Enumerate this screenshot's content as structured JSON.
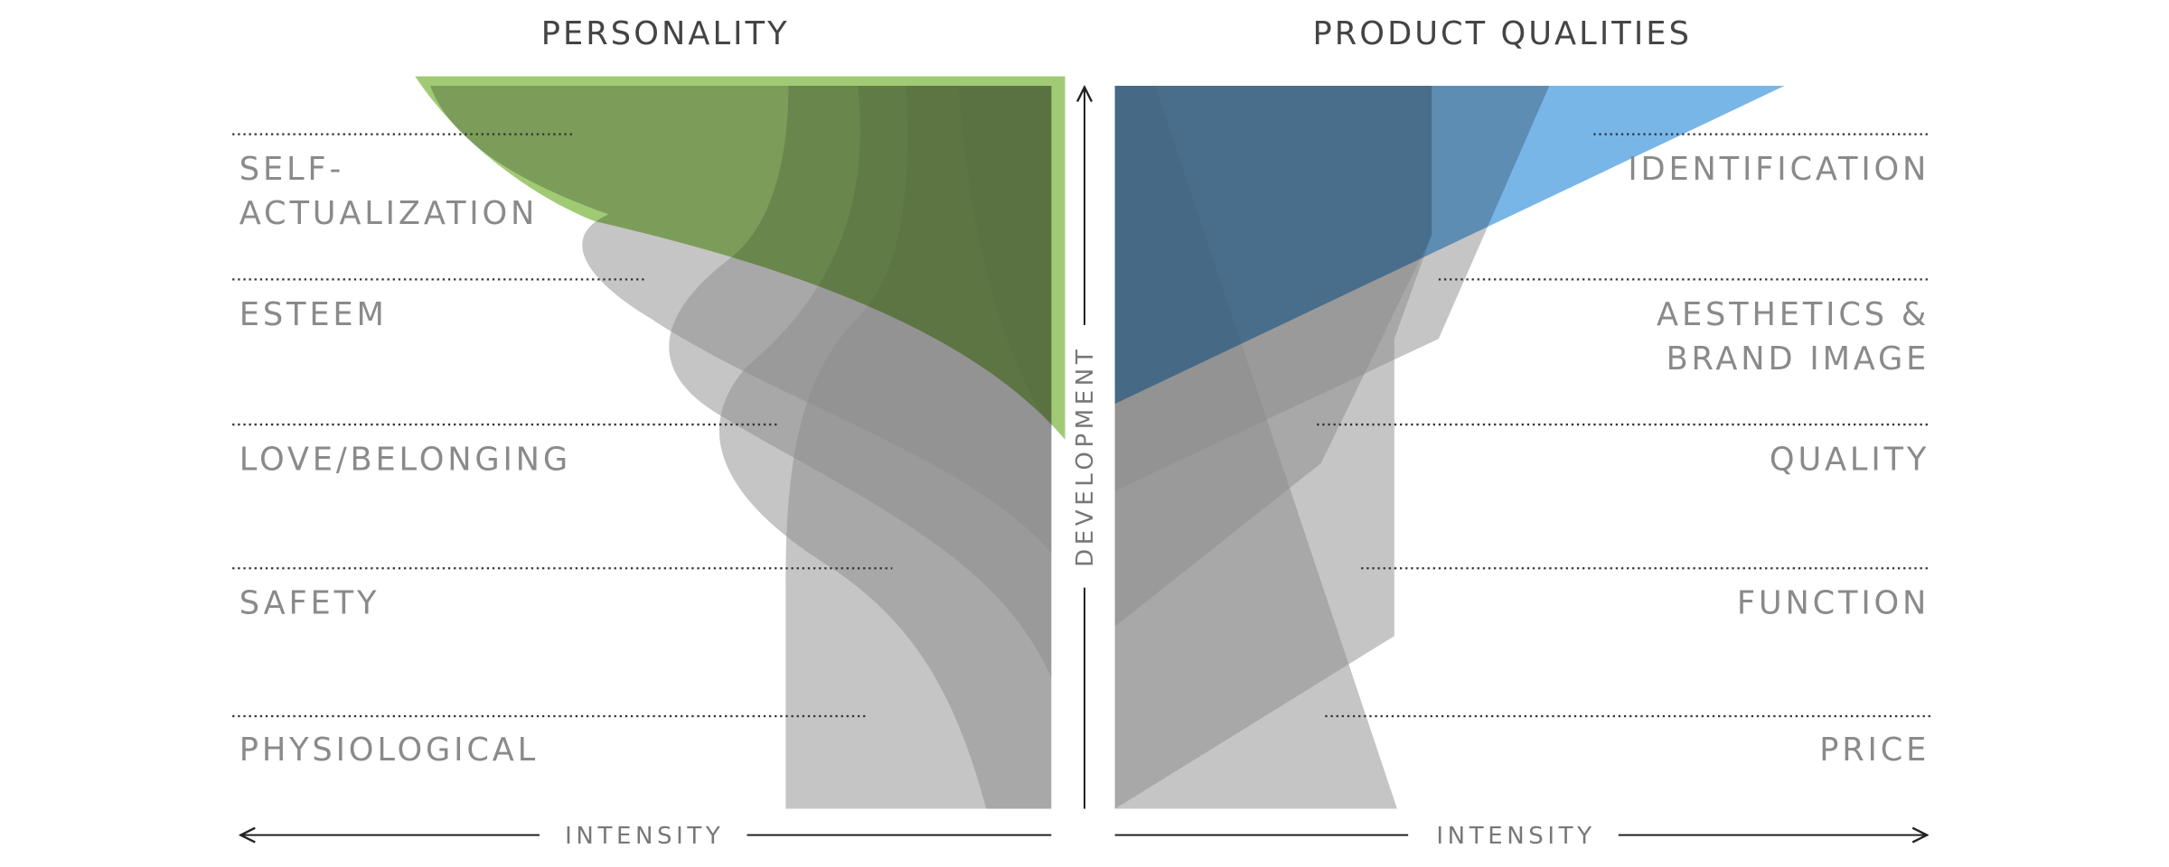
{
  "personality": {
    "title": "PERSONALITY",
    "levels": [
      [
        "SELF-",
        "ACTUALIZATION"
      ],
      [
        "ESTEEM"
      ],
      [
        "LOVE/BELONGING"
      ],
      [
        "SAFETY"
      ],
      [
        "PHYSIOLOGICAL"
      ]
    ],
    "axis_label": "INTENSITY"
  },
  "product_qualities": {
    "title": "PRODUCT QUALITIES",
    "levels": [
      [
        "IDENTIFICATION"
      ],
      [
        "AESTHETICS &",
        "BRAND IMAGE"
      ],
      [
        "QUALITY"
      ],
      [
        "FUNCTION"
      ],
      [
        "PRICE"
      ]
    ],
    "axis_label": "INTENSITY"
  },
  "vertical_axis_label": "DEVELOPMENT"
}
